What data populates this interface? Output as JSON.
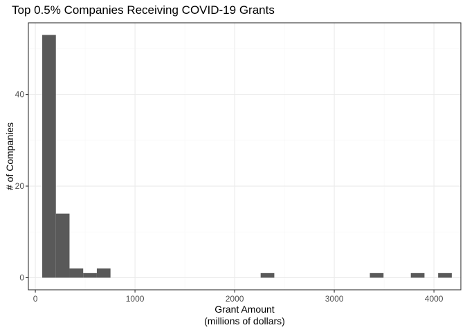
{
  "chart_data": {
    "type": "bar",
    "title": "Top 0.5% Companies Receiving COVID-19 Grants",
    "xlabel_lines": [
      "Grant Amount",
      "(millions of dollars)"
    ],
    "ylabel": "# of Companies",
    "xlim": [
      -70,
      4270
    ],
    "ylim": [
      -2.65,
      55.65
    ],
    "x_ticks": [
      0,
      1000,
      2000,
      3000,
      4000
    ],
    "y_ticks": [
      0,
      20,
      40
    ],
    "bin_width": 137,
    "bins": [
      {
        "start": 69,
        "end": 206,
        "count": 53
      },
      {
        "start": 206,
        "end": 343,
        "count": 14
      },
      {
        "start": 343,
        "end": 480,
        "count": 2
      },
      {
        "start": 480,
        "end": 617,
        "count": 1
      },
      {
        "start": 617,
        "end": 754,
        "count": 2
      },
      {
        "start": 2261,
        "end": 2398,
        "count": 1
      },
      {
        "start": 3357,
        "end": 3494,
        "count": 1
      },
      {
        "start": 3768,
        "end": 3905,
        "count": 1
      },
      {
        "start": 4042,
        "end": 4179,
        "count": 1
      }
    ],
    "grid": true,
    "legend": "none",
    "colors": {
      "bar": "#595959",
      "grid_major": "#ebebeb",
      "grid_minor": "#f5f5f5",
      "panel_border": "#333333"
    }
  }
}
